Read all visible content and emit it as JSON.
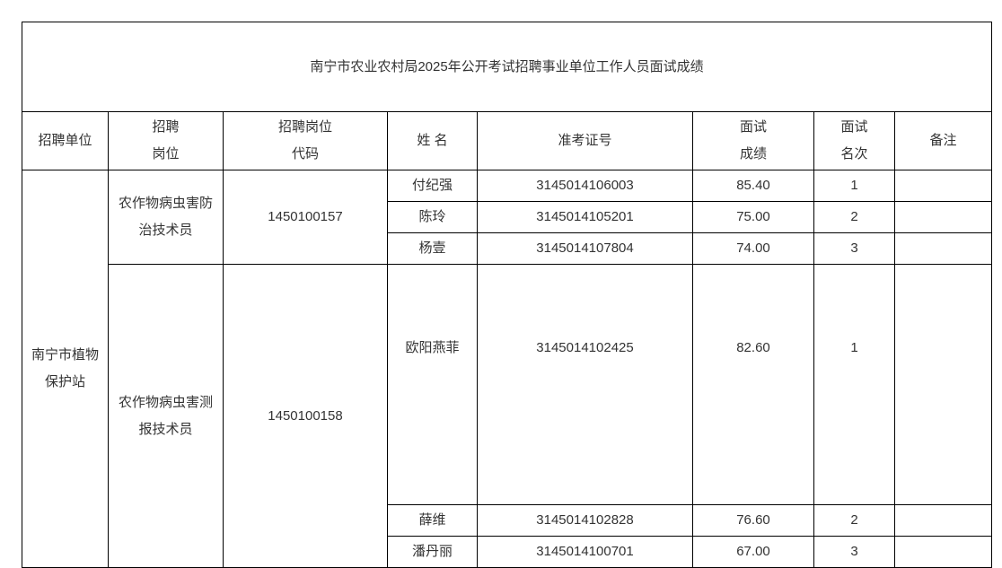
{
  "title": "南宁市农业农村局2025年公开考试招聘事业单位工作人员面试成绩",
  "headers": {
    "unit": "招聘单位",
    "post_l1": "招聘",
    "post_l2": "岗位",
    "code_l1": "招聘岗位",
    "code_l2": "代码",
    "name": "姓 名",
    "exam_no": "准考证号",
    "score_l1": "面试",
    "score_l2": "成绩",
    "rank_l1": "面试",
    "rank_l2": "名次",
    "note": "备注"
  },
  "unit": {
    "l1": "南宁市植物",
    "l2": "保护站"
  },
  "groups": [
    {
      "post_l1": "农作物病虫害防",
      "post_l2": "治技术员",
      "code": "1450100157",
      "rows": [
        {
          "name": "付纪强",
          "exam_no": "3145014106003",
          "score": "85.40",
          "rank": "1",
          "note": ""
        },
        {
          "name": "陈玲",
          "exam_no": "3145014105201",
          "score": "75.00",
          "rank": "2",
          "note": ""
        },
        {
          "name": "杨壹",
          "exam_no": "3145014107804",
          "score": "74.00",
          "rank": "3",
          "note": ""
        }
      ]
    },
    {
      "post_l1": "农作物病虫害测",
      "post_l2": "报技术员",
      "code": "1450100158",
      "rows": [
        {
          "name": "欧阳燕菲",
          "exam_no": "3145014102425",
          "score": "82.60",
          "rank": "1",
          "note": ""
        },
        {
          "name": "薛维",
          "exam_no": "3145014102828",
          "score": "76.60",
          "rank": "2",
          "note": ""
        },
        {
          "name": "潘丹丽",
          "exam_no": "3145014100701",
          "score": "67.00",
          "rank": "3",
          "note": ""
        }
      ]
    }
  ]
}
